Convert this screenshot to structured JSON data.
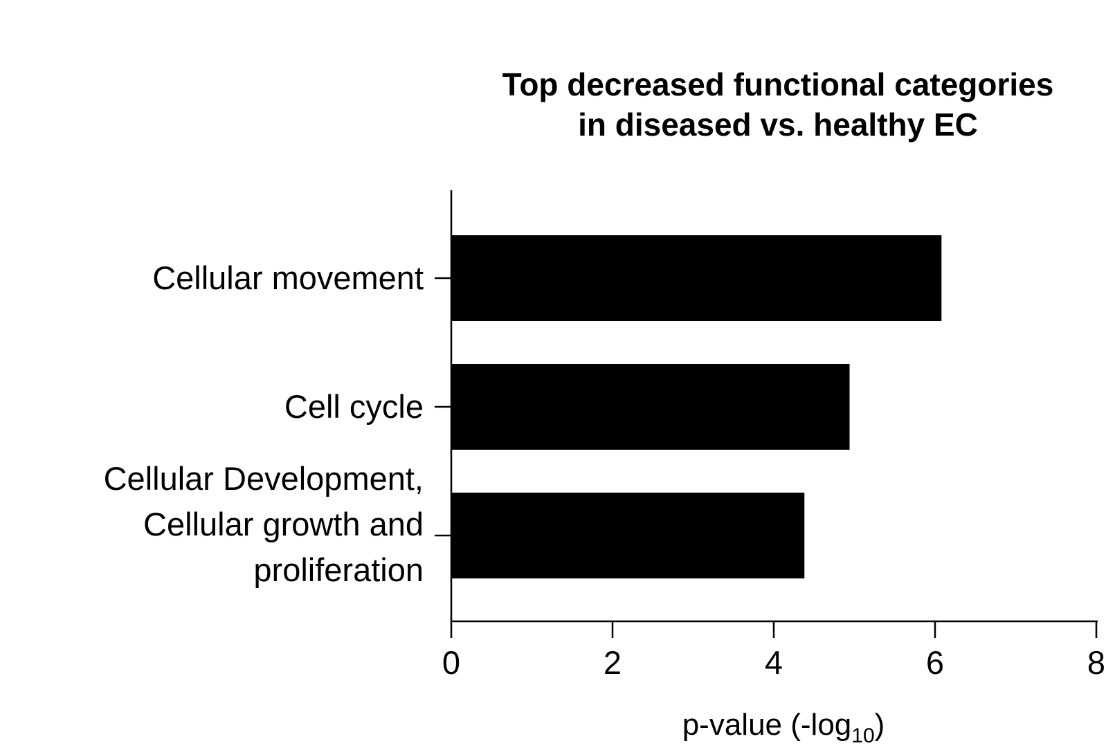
{
  "chart_data": {
    "type": "bar",
    "orientation": "horizontal",
    "title": "Top decreased functional categories in diseased vs. healthy EC",
    "title_lines": [
      "Top decreased functional categories",
      "in diseased vs. healthy EC"
    ],
    "categories": [
      "Cellular movement",
      "Cell cycle",
      "Cellular Development, Cellular growth and proliferation"
    ],
    "category_lines": [
      [
        "Cellular movement"
      ],
      [
        "Cell cycle"
      ],
      [
        "Cellular Development,",
        "Cellular growth and",
        "proliferation"
      ]
    ],
    "values": [
      6.08,
      4.94,
      4.38
    ],
    "xlabel": "p-value (-log10)",
    "xlabel_main": "p-value (-log",
    "xlabel_sub": "10",
    "xlabel_close": ")",
    "xlim": [
      0,
      8
    ],
    "xticks": [
      "0",
      "2",
      "4",
      "6",
      "8"
    ],
    "bar_color": "#000000",
    "grid": false,
    "legend": "none"
  }
}
